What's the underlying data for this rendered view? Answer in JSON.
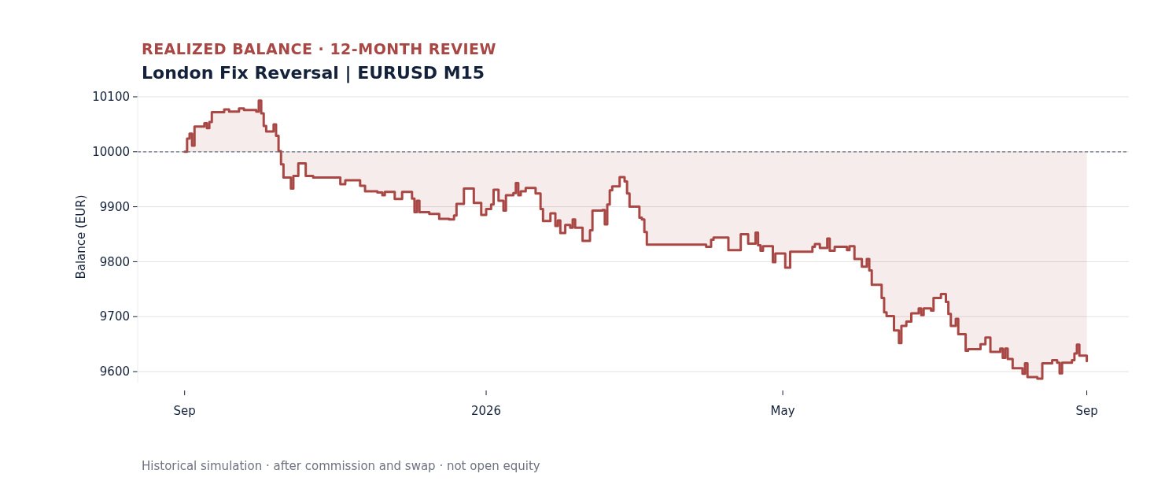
{
  "chart_data": {
    "type": "step",
    "subtitle": "REALIZED BALANCE · 12-MONTH REVIEW",
    "title": "London Fix Reversal | EURUSD M15",
    "ylabel": "Balance (EUR)",
    "annotations": [
      "Historical simulation · after commission and swap · not open equity"
    ],
    "x": [
      "2025-09-01",
      "2025-09-02",
      "2025-09-03",
      "2025-09-04",
      "2025-09-05",
      "2025-09-09",
      "2025-09-10",
      "2025-09-11",
      "2025-09-12",
      "2025-09-17",
      "2025-09-19",
      "2025-09-23",
      "2025-09-25",
      "2025-09-30",
      "2025-10-01",
      "2025-10-02",
      "2025-10-03",
      "2025-10-04",
      "2025-10-07",
      "2025-10-08",
      "2025-10-09",
      "2025-10-10",
      "2025-10-11",
      "2025-10-14",
      "2025-10-15",
      "2025-10-17",
      "2025-10-20",
      "2025-10-23",
      "2025-11-03",
      "2025-11-05",
      "2025-11-11",
      "2025-11-13",
      "2025-11-18",
      "2025-11-20",
      "2025-11-21",
      "2025-11-25",
      "2025-11-28",
      "2025-12-02",
      "2025-12-03",
      "2025-12-04",
      "2025-12-05",
      "2025-12-09",
      "2025-12-13",
      "2025-12-17",
      "2025-12-19",
      "2025-12-20",
      "2025-12-23",
      "2025-12-27",
      "2025-12-30",
      "2026-01-01",
      "2026-01-03",
      "2026-01-04",
      "2026-01-06",
      "2026-01-08",
      "2026-01-09",
      "2026-01-12",
      "2026-01-13",
      "2026-01-14",
      "2026-01-15",
      "2026-01-17",
      "2026-01-21",
      "2026-01-23",
      "2026-01-24",
      "2026-01-27",
      "2026-01-29",
      "2026-01-30",
      "2026-01-31",
      "2026-02-02",
      "2026-02-04",
      "2026-02-05",
      "2026-02-06",
      "2026-02-09",
      "2026-02-12",
      "2026-02-13",
      "2026-02-17",
      "2026-02-18",
      "2026-02-19",
      "2026-02-20",
      "2026-02-21",
      "2026-02-24",
      "2026-02-26",
      "2026-02-27",
      "2026-02-28",
      "2026-03-04",
      "2026-03-05",
      "2026-03-06",
      "2026-03-07",
      "2026-03-31",
      "2026-04-02",
      "2026-04-03",
      "2026-04-09",
      "2026-04-14",
      "2026-04-17",
      "2026-04-20",
      "2026-04-21",
      "2026-04-22",
      "2026-04-23",
      "2026-04-27",
      "2026-04-28",
      "2026-05-02",
      "2026-05-04",
      "2026-05-13",
      "2026-05-14",
      "2026-05-16",
      "2026-05-19",
      "2026-05-20",
      "2026-05-22",
      "2026-05-27",
      "2026-05-28",
      "2026-05-30",
      "2026-06-02",
      "2026-06-04",
      "2026-06-05",
      "2026-06-06",
      "2026-06-10",
      "2026-06-11",
      "2026-06-12",
      "2026-06-15",
      "2026-06-17",
      "2026-06-18",
      "2026-06-20",
      "2026-06-22",
      "2026-06-25",
      "2026-06-26",
      "2026-06-27",
      "2026-06-30",
      "2026-07-01",
      "2026-07-04",
      "2026-07-06",
      "2026-07-07",
      "2026-07-08",
      "2026-07-10",
      "2026-07-11",
      "2026-07-14",
      "2026-07-15",
      "2026-07-20",
      "2026-07-22",
      "2026-07-24",
      "2026-07-28",
      "2026-07-29",
      "2026-07-30",
      "2026-07-31",
      "2026-08-02",
      "2026-08-06",
      "2026-08-07",
      "2026-08-08",
      "2026-08-12",
      "2026-08-14",
      "2026-08-18",
      "2026-08-20",
      "2026-08-21",
      "2026-08-22",
      "2026-08-26",
      "2026-08-27",
      "2026-08-28",
      "2026-08-29",
      "2026-09-01"
    ],
    "series": [
      {
        "color": "#a84744",
        "values": [
          10000,
          10024,
          10033,
          10011,
          10046,
          10052,
          10043,
          10054,
          10072,
          10077,
          10073,
          10079,
          10076,
          10073,
          10093,
          10070,
          10047,
          10037,
          10050,
          10029,
          10001,
          9977,
          9953,
          9933,
          9956,
          9979,
          9956,
          9953,
          9941,
          9948,
          9938,
          9928,
          9926,
          9921,
          9927,
          9914,
          9927,
          9915,
          9890,
          9911,
          9890,
          9887,
          9878,
          9877,
          9884,
          9905,
          9933,
          9907,
          9885,
          9896,
          9904,
          9931,
          9911,
          9893,
          9921,
          9925,
          9943,
          9921,
          9928,
          9934,
          9924,
          9896,
          9874,
          9888,
          9865,
          9875,
          9852,
          9867,
          9862,
          9877,
          9862,
          9838,
          9857,
          9893,
          9894,
          9868,
          9904,
          9930,
          9937,
          9954,
          9946,
          9924,
          9900,
          9880,
          9877,
          9854,
          9831,
          9827,
          9840,
          9844,
          9821,
          9850,
          9833,
          9853,
          9830,
          9820,
          9828,
          9799,
          9815,
          9789,
          9818,
          9827,
          9832,
          9825,
          9842,
          9820,
          9827,
          9821,
          9828,
          9805,
          9791,
          9805,
          9784,
          9758,
          9734,
          9708,
          9701,
          9675,
          9652,
          9683,
          9691,
          9706,
          9715,
          9703,
          9715,
          9711,
          9734,
          9741,
          9727,
          9705,
          9683,
          9696,
          9668,
          9638,
          9641,
          9650,
          9662,
          9636,
          9642,
          9625,
          9642,
          9623,
          9606,
          9596,
          9615,
          9590,
          9587,
          9615,
          9621,
          9616,
          9597,
          9616,
          9621,
          9633,
          9649,
          9629,
          9619
        ]
      }
    ],
    "xlim": [
      "2025-08-13",
      "2026-09-18"
    ],
    "xticks": [
      {
        "value": "2025-09-01",
        "label": "Sep"
      },
      {
        "value": "2026-01-01",
        "label": "2026"
      },
      {
        "value": "2026-05-01",
        "label": "May"
      },
      {
        "value": "2026-09-01",
        "label": "Sep"
      }
    ],
    "ylim": [
      9580,
      10110
    ],
    "yticks": [
      9600,
      9700,
      9800,
      9900,
      10000,
      10100
    ],
    "ref_lines": [
      {
        "axis": "y",
        "value": 10000,
        "color": "#6b7280",
        "line_style": "dashed"
      }
    ],
    "grid": "y",
    "line_style": "solid"
  }
}
